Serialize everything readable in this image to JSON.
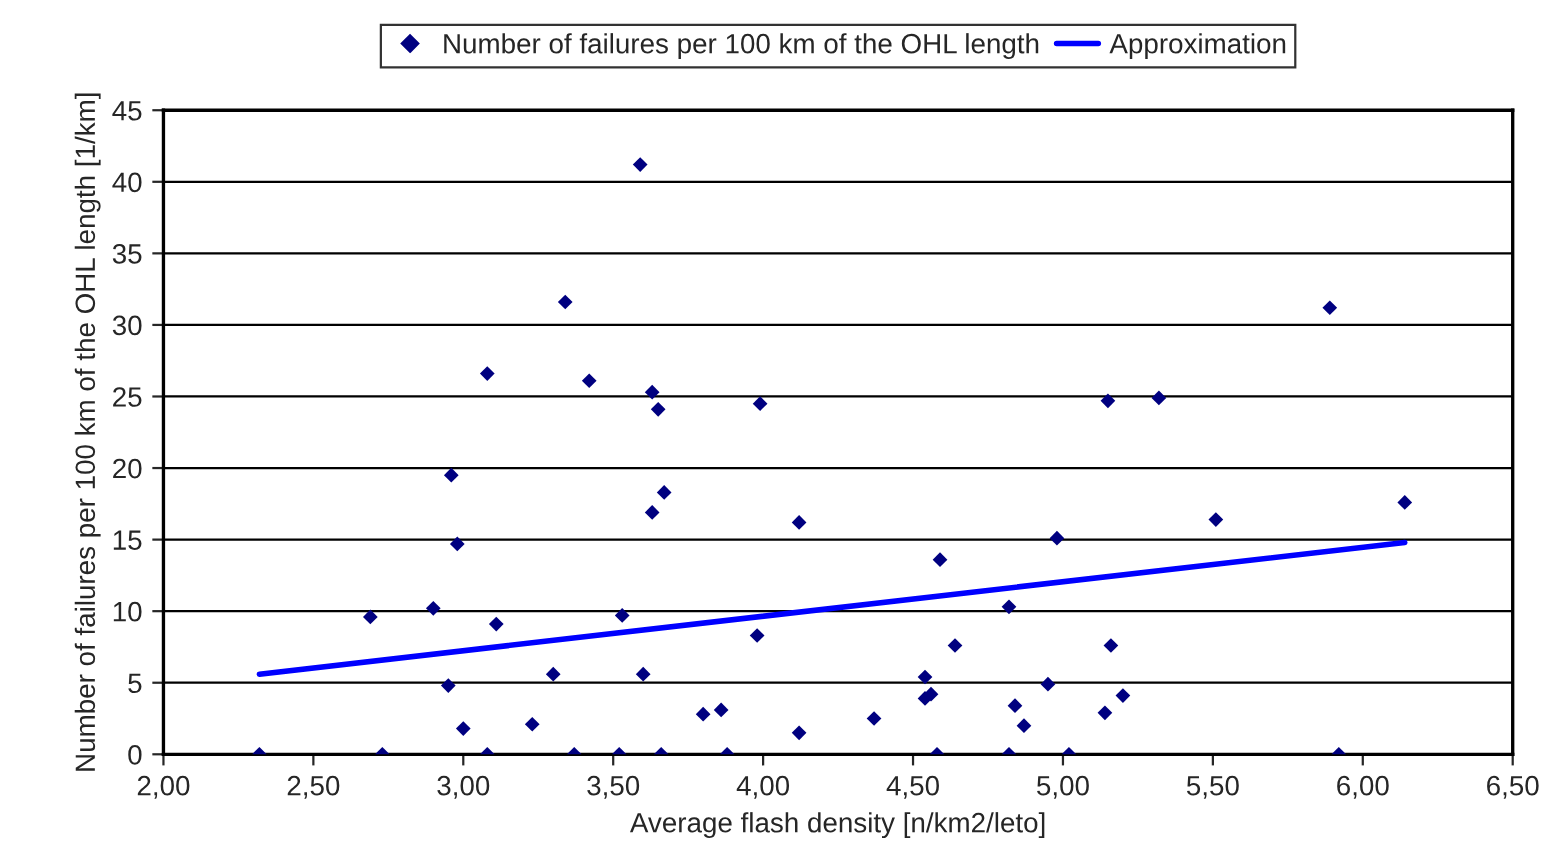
{
  "chart_data": {
    "type": "scatter",
    "xlabel": "Average flash density [n/km2/leto]",
    "ylabel": "Number of failures per 100 km of the OHL length [1/km]",
    "series": [
      {
        "name": "Number of failures per 100 km of the OHL length",
        "color": "#000080",
        "marker": "diamond",
        "x": [
          3.59,
          3.34,
          3.08,
          3.42,
          3.63,
          3.65,
          3.99,
          2.96,
          3.67,
          3.63,
          4.12,
          2.98,
          2.69,
          2.9,
          3.11,
          3.53,
          3.98,
          3.3,
          3.6,
          2.95,
          3.8,
          3.86,
          3.23,
          3.0,
          4.12,
          2.32,
          2.73,
          3.08,
          3.37,
          3.52,
          3.66,
          3.88,
          5.89,
          5.15,
          5.32,
          6.14,
          5.51,
          4.98,
          4.59,
          4.82,
          4.64,
          5.16,
          4.54,
          4.56,
          4.54,
          4.95,
          4.84,
          4.87,
          5.2,
          5.14,
          4.37,
          4.58,
          4.82,
          5.02,
          5.92
        ],
        "values": [
          41.2,
          31.6,
          26.6,
          26.1,
          25.3,
          24.1,
          24.5,
          19.5,
          18.3,
          16.9,
          16.2,
          14.7,
          9.6,
          10.2,
          9.1,
          9.7,
          8.3,
          5.6,
          5.6,
          4.8,
          2.8,
          3.1,
          2.1,
          1.8,
          1.5,
          0,
          0,
          0,
          0,
          0,
          0,
          0,
          31.2,
          24.7,
          24.9,
          17.6,
          16.4,
          15.1,
          13.6,
          10.3,
          7.6,
          7.6,
          5.4,
          4.2,
          3.9,
          4.9,
          3.4,
          2.0,
          4.1,
          2.9,
          2.5,
          0,
          0,
          0,
          0
        ]
      },
      {
        "name": "Approximation",
        "type": "line",
        "color": "#0000ff",
        "marker": "none",
        "line_style": "solid",
        "x": [
          2.32,
          6.14
        ],
        "values": [
          5.6,
          14.8
        ]
      }
    ],
    "xlim": [
      2.0,
      6.5
    ],
    "xticks": [
      {
        "value": 2.0,
        "label": "2,00"
      },
      {
        "value": 2.5,
        "label": "2,50"
      },
      {
        "value": 3.0,
        "label": "3,00"
      },
      {
        "value": 3.5,
        "label": "3,50"
      },
      {
        "value": 4.0,
        "label": "4,00"
      },
      {
        "value": 4.5,
        "label": "4,50"
      },
      {
        "value": 5.0,
        "label": "5,00"
      },
      {
        "value": 5.5,
        "label": "5,50"
      },
      {
        "value": 6.0,
        "label": "6,00"
      },
      {
        "value": 6.5,
        "label": "6,50"
      }
    ],
    "ylim": [
      0,
      45
    ],
    "yticks": [
      0,
      5,
      10,
      15,
      20,
      25,
      30,
      35,
      40,
      45
    ],
    "grid": "y",
    "legend": "top"
  }
}
